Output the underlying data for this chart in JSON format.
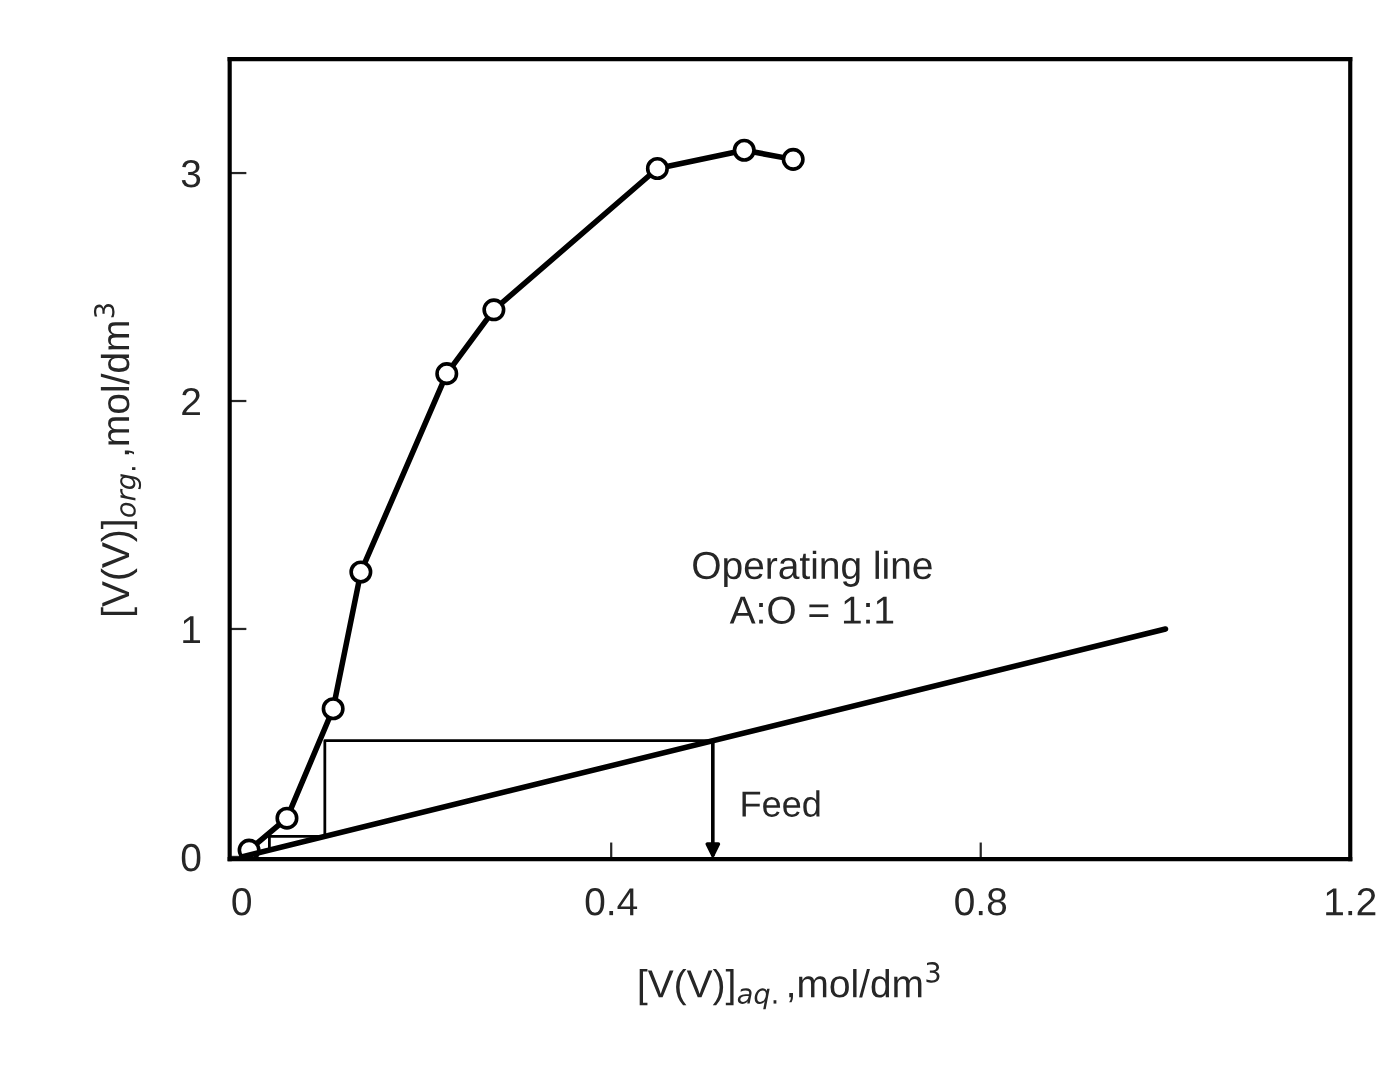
{
  "chart_data": {
    "type": "line",
    "xlabel": "[V(V)]$_{aq.}$,mol/dm$^{3}$",
    "ylabel": "[V(V)]$_{org.}$,mol/dm$^{3}$",
    "xlim": [
      -0.013,
      1.2
    ],
    "ylim": [
      -0.01,
      3.5
    ],
    "xticks": [
      0,
      0.4,
      0.8,
      1.2
    ],
    "yticks": [
      0,
      1,
      2,
      3
    ],
    "grid": false,
    "legend": false,
    "series": [
      {
        "color": "#000000",
        "marker": "circle",
        "x": [
          0.008,
          0.049,
          0.099,
          0.129,
          0.222,
          0.273,
          0.45,
          0.544,
          0.597
        ],
        "values": [
          0.03,
          0.17,
          0.65,
          1.25,
          2.12,
          2.4,
          3.02,
          3.1,
          3.06
        ]
      },
      {
        "color": "#000000",
        "marker": "none",
        "x": [
          0,
          1.0
        ],
        "values": [
          0,
          1.0
        ]
      },
      {
        "color": "#000000",
        "marker": "none",
        "x": [
          0.51,
          0.09,
          0.09,
          0.03,
          0.03
        ],
        "values": [
          0.51,
          0.51,
          0.09,
          0.09,
          0.03
        ]
      }
    ],
    "annotations": [
      "Operating line\nA:O = 1:1",
      "Feed"
    ]
  }
}
